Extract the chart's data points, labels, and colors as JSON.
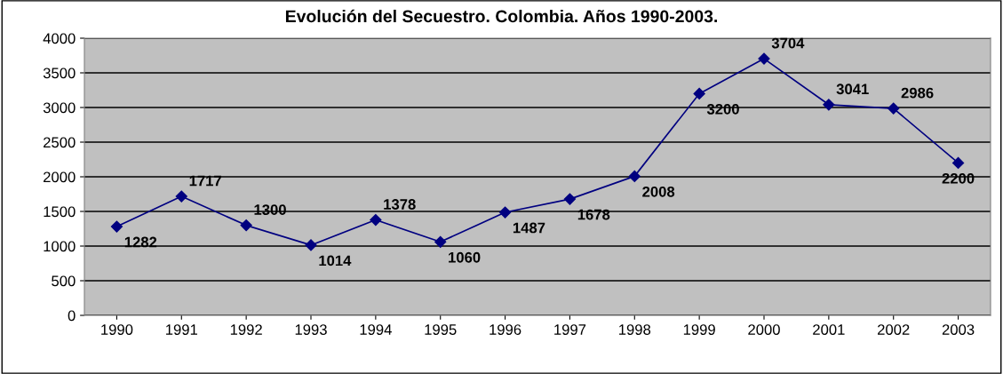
{
  "chart_data": {
    "type": "line",
    "title": "Evolución del Secuestro. Colombia. Años 1990-2003.",
    "categories": [
      "1990",
      "1991",
      "1992",
      "1993",
      "1994",
      "1995",
      "1996",
      "1997",
      "1998",
      "1999",
      "2000",
      "2001",
      "2002",
      "2003"
    ],
    "series": [
      {
        "color": "#000080",
        "values": [
          1282,
          1717,
          1300,
          1014,
          1378,
          1060,
          1487,
          1678,
          2008,
          3200,
          3704,
          3041,
          2986,
          2200
        ]
      }
    ],
    "ylim": [
      0,
      4000
    ],
    "yticks": [
      0,
      500,
      1000,
      1500,
      2000,
      2500,
      3000,
      3500,
      4000
    ],
    "grid": "y",
    "marker": "diamond",
    "line_style": "solid",
    "data_labels": true,
    "legend": false
  }
}
